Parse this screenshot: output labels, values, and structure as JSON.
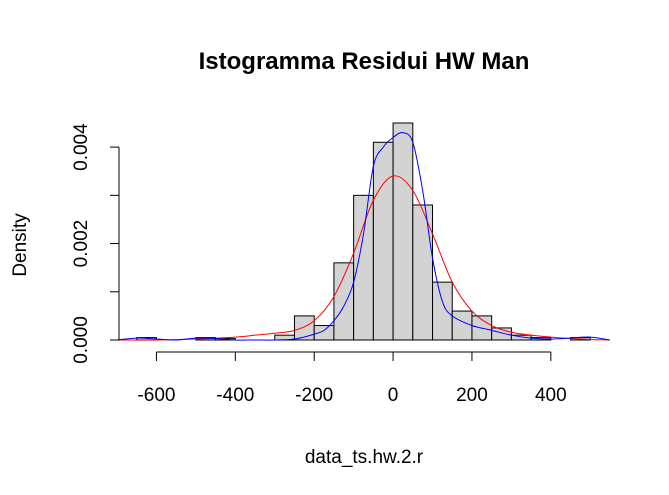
{
  "chart_data": {
    "type": "bar",
    "title": "Istogramma Residui HW Man",
    "xlabel": "data_ts.hw.2.r",
    "ylabel": "Density",
    "xlim": [
      -700,
      550
    ],
    "ylim": [
      0,
      0.0045
    ],
    "x_ticks": [
      -600,
      -400,
      -200,
      0,
      200,
      400
    ],
    "x_tick_labels": [
      "-600",
      "-400",
      "-200",
      "0",
      "200",
      "400"
    ],
    "y_ticks": [
      0,
      0.001,
      0.002,
      0.003,
      0.004
    ],
    "y_tick_labels": [
      "0.000",
      "",
      "0.002",
      "",
      "0.004"
    ],
    "bin_width": 50,
    "bins_left": [
      -700,
      -650,
      -600,
      -550,
      -500,
      -450,
      -400,
      -350,
      -300,
      -250,
      -200,
      -150,
      -100,
      -50,
      0,
      50,
      100,
      150,
      200,
      250,
      300,
      350,
      400,
      450
    ],
    "density": [
      0,
      5e-05,
      0,
      0,
      5e-05,
      3e-05,
      0,
      0,
      0.0001,
      0.0005,
      0.0003,
      0.0016,
      0.003,
      0.0041,
      0.0045,
      0.0028,
      0.0012,
      0.0006,
      0.0005,
      0.00025,
      0.0001,
      5e-05,
      0,
      5e-05
    ],
    "bar_color": "#d3d3d3",
    "series": [
      {
        "color": "#ff0000",
        "x": [
          -700,
          -600,
          -500,
          -400,
          -350,
          -300,
          -250,
          -200,
          -150,
          -100,
          -50,
          0,
          50,
          100,
          150,
          200,
          250,
          300,
          350,
          400,
          450,
          500,
          550
        ],
        "y": [
          0,
          0,
          2e-05,
          6e-05,
          0.0001,
          0.00014,
          0.0002,
          0.0004,
          0.0009,
          0.0018,
          0.0029,
          0.0034,
          0.0031,
          0.0022,
          0.0012,
          0.0006,
          0.0003,
          0.00016,
          0.0001,
          6e-05,
          3e-05,
          1e-05,
          0
        ]
      },
      {
        "color": "#0000ff",
        "x": [
          -700,
          -650,
          -600,
          -550,
          -500,
          -450,
          -400,
          -350,
          -300,
          -250,
          -200,
          -175,
          -150,
          -125,
          -100,
          -75,
          -50,
          -25,
          0,
          25,
          50,
          75,
          100,
          125,
          150,
          200,
          250,
          300,
          350,
          400,
          450,
          500,
          550
        ],
        "y": [
          0,
          4e-05,
          2e-05,
          0,
          4e-05,
          3e-05,
          0,
          0,
          0,
          2e-05,
          0.00012,
          0.0002,
          0.0004,
          0.0007,
          0.0012,
          0.0022,
          0.0036,
          0.004,
          0.0042,
          0.0043,
          0.0041,
          0.0031,
          0.0017,
          0.0008,
          0.0005,
          0.0003,
          0.0002,
          0.0001,
          4e-05,
          2e-05,
          4e-05,
          6e-05,
          0
        ]
      }
    ]
  }
}
